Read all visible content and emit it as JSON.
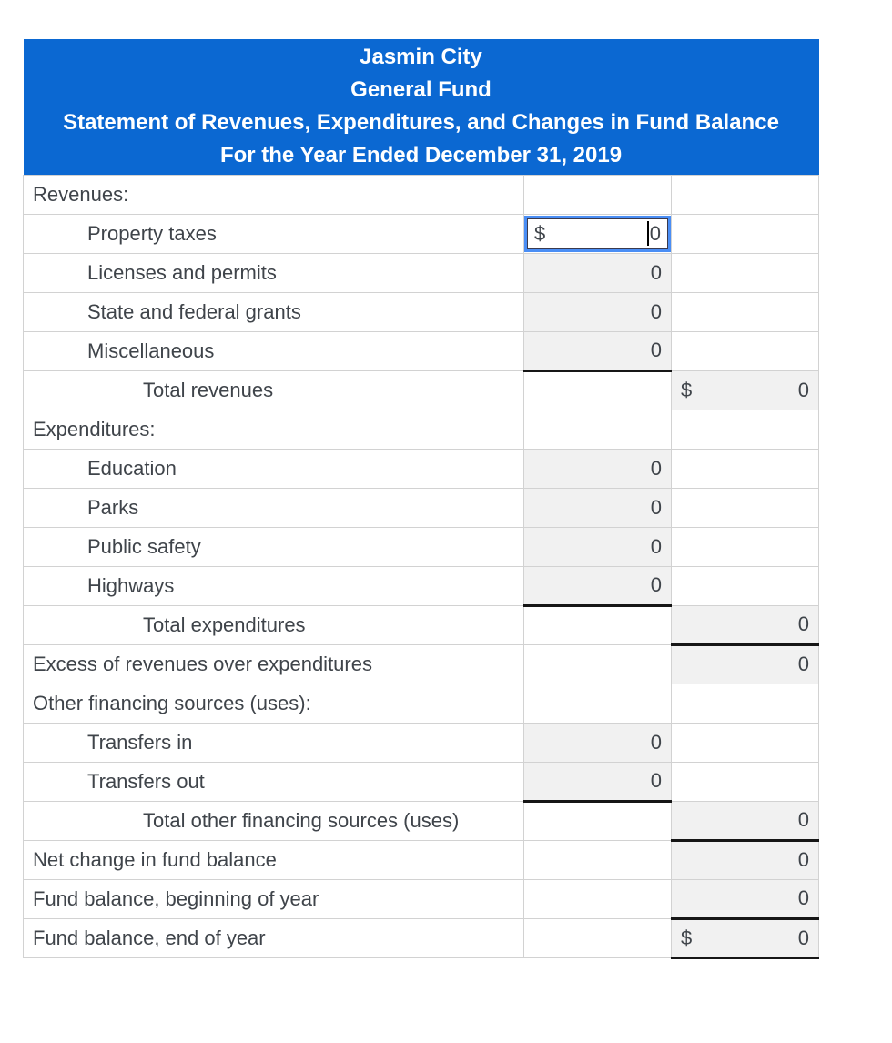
{
  "header": {
    "lines": [
      "Jasmin City",
      "General Fund",
      "Statement of Revenues, Expenditures, and Changes in Fund Balance",
      "For the Year Ended December 31, 2019"
    ]
  },
  "colors": {
    "header_bg": "#0b68d2",
    "header_text": "#ffffff",
    "cell_fill": "#f1f1f1",
    "grid_line": "#d2d2d2",
    "sum_line": "#161616",
    "focus_ring": "#4a8ef5",
    "label_text": "#3f444a"
  },
  "table": {
    "rows": [
      {
        "label": "Revenues:",
        "indent": 0,
        "col2": null,
        "col3": null
      },
      {
        "label": "Property taxes",
        "indent": 1,
        "col2": {
          "prefix": "$",
          "value": "0",
          "focused": true
        },
        "col3": null
      },
      {
        "label": "Licenses and permits",
        "indent": 1,
        "col2": {
          "value": "0"
        },
        "col3": null
      },
      {
        "label": "State and federal grants",
        "indent": 1,
        "col2": {
          "value": "0"
        },
        "col3": null
      },
      {
        "label": "Miscellaneous",
        "indent": 1,
        "col2": {
          "value": "0",
          "underline": true
        },
        "col3": null
      },
      {
        "label": "Total revenues",
        "indent": 2,
        "col2": null,
        "col3": {
          "prefix": "$",
          "value": "0"
        }
      },
      {
        "label": "Expenditures:",
        "indent": 0,
        "col2": null,
        "col3": null
      },
      {
        "label": "Education",
        "indent": 1,
        "col2": {
          "value": "0"
        },
        "col3": null
      },
      {
        "label": "Parks",
        "indent": 1,
        "col2": {
          "value": "0"
        },
        "col3": null
      },
      {
        "label": "Public safety",
        "indent": 1,
        "col2": {
          "value": "0"
        },
        "col3": null
      },
      {
        "label": "Highways",
        "indent": 1,
        "col2": {
          "value": "0",
          "underline": true
        },
        "col3": null
      },
      {
        "label": "Total expenditures",
        "indent": 2,
        "col2": null,
        "col3": {
          "value": "0",
          "underline": true
        }
      },
      {
        "label": "Excess of revenues over expenditures",
        "indent": 0,
        "col2": null,
        "col3": {
          "value": "0"
        }
      },
      {
        "label": "Other financing sources (uses):",
        "indent": 0,
        "col2": null,
        "col3": null
      },
      {
        "label": "Transfers in",
        "indent": 1,
        "col2": {
          "value": "0"
        },
        "col3": null
      },
      {
        "label": "Transfers out",
        "indent": 1,
        "col2": {
          "value": "0",
          "underline": true
        },
        "col3": null
      },
      {
        "label": "Total other financing sources (uses)",
        "indent": 2,
        "col2": null,
        "col3": {
          "value": "0",
          "underline": true
        }
      },
      {
        "label": "Net change in fund balance",
        "indent": 0,
        "col2": null,
        "col3": {
          "value": "0"
        }
      },
      {
        "label": "Fund balance, beginning of year",
        "indent": 0,
        "col2": null,
        "col3": {
          "value": "0",
          "underline": true
        }
      },
      {
        "label": "Fund balance, end of year",
        "indent": 0,
        "col2": null,
        "col3": {
          "prefix": "$",
          "value": "0",
          "underline": true
        }
      }
    ]
  }
}
